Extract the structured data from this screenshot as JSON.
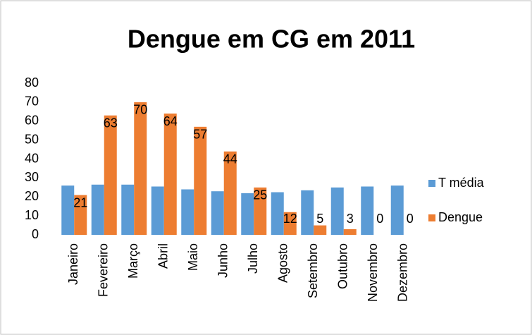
{
  "chart_data": {
    "type": "bar",
    "title": "Dengue em CG em 2011",
    "categories": [
      "Janeiro",
      "Fevereiro",
      "Março",
      "Abril",
      "Maio",
      "Junho",
      "Julho",
      "Agosto",
      "Setembro",
      "Outubro",
      "Novembro",
      "Dezembro"
    ],
    "series": [
      {
        "name": "T média",
        "color": "#5b9bd5",
        "values": [
          26,
          26.5,
          26.5,
          25.5,
          24,
          23,
          22,
          22.5,
          23.5,
          25,
          25.5,
          26
        ]
      },
      {
        "name": "Dengue",
        "color": "#ed7d31",
        "values": [
          21,
          63,
          70,
          64,
          57,
          44,
          25,
          12,
          5,
          3,
          0,
          0
        ],
        "data_labels": true
      }
    ],
    "ylim": [
      0,
      80
    ],
    "yticks": [
      0,
      10,
      20,
      30,
      40,
      50,
      60,
      70,
      80
    ],
    "grid": false,
    "legend": "right"
  }
}
